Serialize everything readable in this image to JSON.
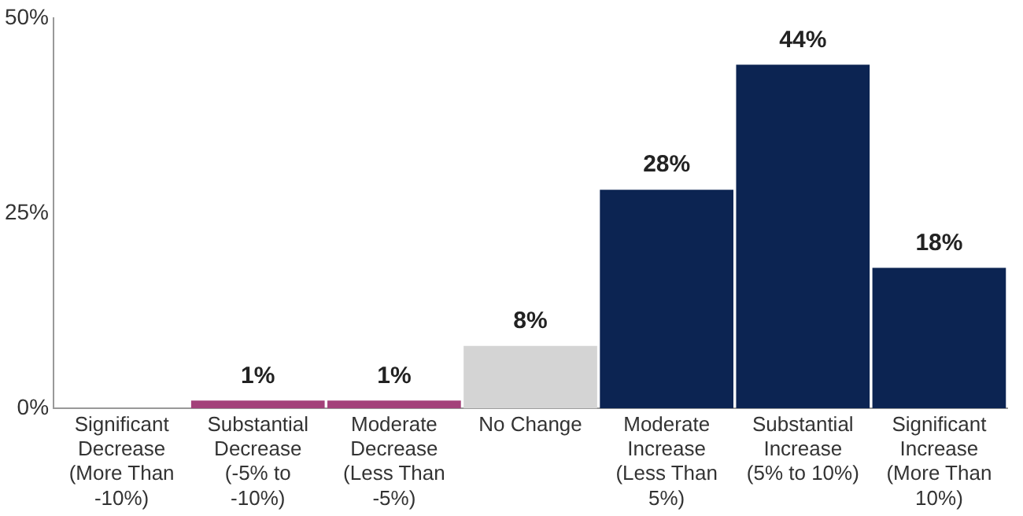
{
  "chart_data": {
    "type": "bar",
    "categories": [
      "Significant Decrease (More Than -10%)",
      "Substantial Decrease (-5% to -10%)",
      "Moderate Decrease (Less Than -5%)",
      "No Change",
      "Moderate Increase (Less Than 5%)",
      "Substantial Increase (5% to 10%)",
      "Significant Increase (More Than 10%)"
    ],
    "values": [
      0,
      1,
      1,
      8,
      28,
      44,
      18
    ],
    "colors": [
      "#a3427a",
      "#a3427a",
      "#a3427a",
      "#d4d4d4",
      "#0c2452",
      "#0c2452",
      "#0c2452"
    ],
    "value_labels": [
      null,
      "1%",
      "1%",
      "8%",
      "28%",
      "44%",
      "18%"
    ],
    "ylim": [
      0,
      50
    ],
    "yticks": [
      {
        "value": 0,
        "label": "0%"
      },
      {
        "value": 25,
        "label": "25%"
      },
      {
        "value": 50,
        "label": "50%"
      }
    ],
    "grid": false,
    "legend": false
  }
}
